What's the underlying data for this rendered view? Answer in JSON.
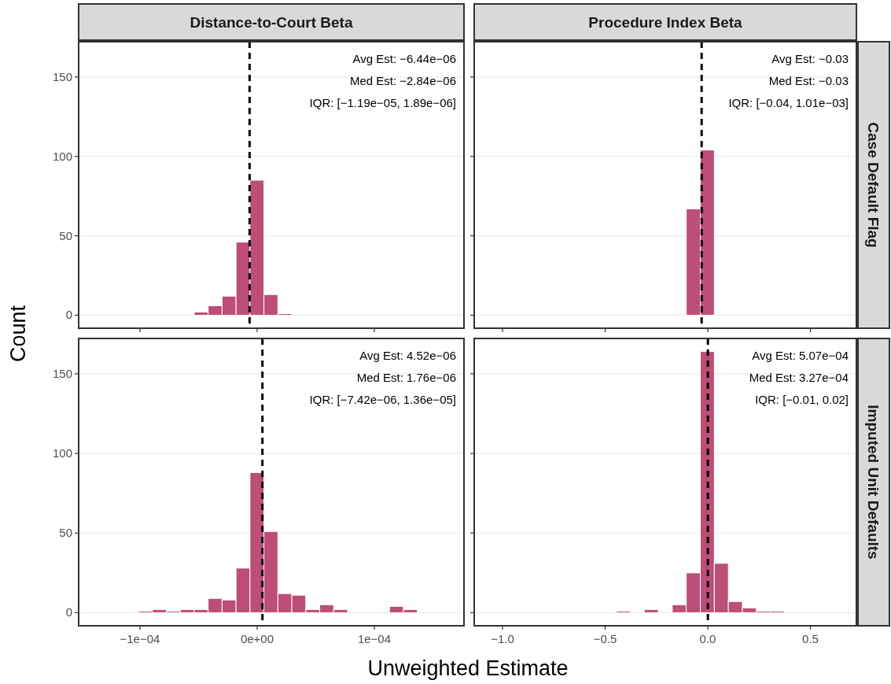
{
  "chart_data": [
    {
      "type": "histogram",
      "title": "Distance-to-Court Beta",
      "ylabel": "Count",
      "color": "#bc4e78",
      "grid": "y",
      "tick_labels": "y",
      "bins": [
        -0.000137,
        -0.0001251,
        -0.0001132,
        -0.0001013,
        -8.94e-05,
        -7.75e-05,
        -6.56e-05,
        -5.37e-05,
        -4.18e-05,
        -2.99e-05,
        -1.8e-05,
        -6.1e-06,
        5.8e-06,
        1.77e-05,
        2.96e-05,
        4.15e-05,
        5.34e-05,
        6.53e-05,
        7.72e-05,
        8.91e-05,
        0.000101,
        0.0001129,
        0.0001248,
        0.0001367,
        0.0001486,
        0.0001605
      ],
      "values": [
        0,
        0,
        0,
        0,
        0,
        0,
        0,
        2,
        6,
        12,
        46,
        85,
        13,
        1,
        0,
        0,
        0,
        0,
        0,
        0,
        0,
        0,
        0,
        0,
        0
      ],
      "xlim": [
        -0.0001523,
        0.0001765
      ],
      "xticks": [
        {
          "value": -0.0001,
          "label": null
        },
        {
          "value": 0,
          "label": null
        },
        {
          "value": 0.0001,
          "label": null
        }
      ],
      "ylim": [
        -8.2,
        172.2
      ],
      "yticks": [
        0,
        50,
        100,
        150
      ],
      "ref_lines": [
        {
          "axis": "x",
          "value": -6.44e-06,
          "color": "#000000",
          "line_style": "dashed"
        }
      ],
      "annotations": [
        "Avg Est: −6.44e−06",
        "Med Est: −2.84e−06",
        "IQR: [−1.19e−05, 1.89e−06]"
      ]
    },
    {
      "type": "histogram",
      "title": "Procedure Index Beta",
      "y2label": "Case Default Flag",
      "color": "#bc4e78",
      "grid": "y",
      "tick_labels": false,
      "bins": [
        -1.061,
        -0.9927,
        -0.9244,
        -0.8561,
        -0.7878,
        -0.7195,
        -0.6512,
        -0.5829,
        -0.5146,
        -0.4463,
        -0.378,
        -0.3097,
        -0.2414,
        -0.1731,
        -0.1048,
        -0.0365,
        0.0318,
        0.1001,
        0.1684,
        0.2367,
        0.305,
        0.3733,
        0.4416,
        0.5099,
        0.5782,
        0.6465
      ],
      "values": [
        0,
        0,
        0,
        0,
        0,
        0,
        0,
        0,
        0,
        0,
        0,
        0,
        0,
        0,
        67,
        104,
        0,
        0,
        0,
        0,
        0,
        0,
        0,
        0,
        0
      ],
      "xlim": [
        -1.138,
        0.724
      ],
      "xticks": [
        {
          "value": -1,
          "label": null
        },
        {
          "value": -0.5,
          "label": null
        },
        {
          "value": 0,
          "label": null
        },
        {
          "value": 0.5,
          "label": null
        }
      ],
      "ylim": [
        -8.2,
        172.2
      ],
      "yticks": [
        0,
        50,
        100,
        150
      ],
      "ref_lines": [
        {
          "axis": "x",
          "value": -0.03,
          "color": "#000000",
          "line_style": "dashed"
        }
      ],
      "annotations": [
        "Avg Est: −0.03",
        "Med Est: −0.03",
        "IQR: [−0.04, 1.01e−03]"
      ]
    },
    {
      "type": "histogram",
      "xlabel": "Unweighted Estimate",
      "color": "#bc4e78",
      "grid": "y",
      "bins": [
        -0.000137,
        -0.0001251,
        -0.0001132,
        -0.0001013,
        -8.94e-05,
        -7.75e-05,
        -6.56e-05,
        -5.37e-05,
        -4.18e-05,
        -2.99e-05,
        -1.8e-05,
        -6.1e-06,
        5.8e-06,
        1.77e-05,
        2.96e-05,
        4.15e-05,
        5.34e-05,
        6.53e-05,
        7.72e-05,
        8.91e-05,
        0.000101,
        0.0001129,
        0.0001248,
        0.0001367,
        0.0001486,
        0.0001605
      ],
      "values": [
        0,
        0,
        0,
        1,
        2,
        1,
        2,
        2,
        9,
        8,
        28,
        88,
        51,
        12,
        11,
        2,
        5,
        2,
        0,
        0,
        0,
        4,
        2,
        0,
        0
      ],
      "xlim": [
        -0.0001523,
        0.0001765
      ],
      "xticks": [
        {
          "value": -0.0001,
          "label": "−1e−04"
        },
        {
          "value": 0,
          "label": "0e+00"
        },
        {
          "value": 0.0001,
          "label": "1e−04"
        }
      ],
      "ylim": [
        -8.2,
        172.2
      ],
      "yticks": [
        0,
        50,
        100,
        150
      ],
      "ref_lines": [
        {
          "axis": "x",
          "value": 4.52e-06,
          "color": "#000000",
          "line_style": "dashed"
        }
      ],
      "annotations": [
        "Avg Est: 4.52e−06",
        "Med Est: 1.76e−06",
        "IQR: [−7.42e−06, 1.36e−05]"
      ]
    },
    {
      "type": "histogram",
      "y2label": "Imputed Unit Defaults",
      "color": "#bc4e78",
      "grid": "y",
      "tick_labels": "x",
      "bins": [
        -1.061,
        -0.9927,
        -0.9244,
        -0.8561,
        -0.7878,
        -0.7195,
        -0.6512,
        -0.5829,
        -0.5146,
        -0.4463,
        -0.378,
        -0.3097,
        -0.2414,
        -0.1731,
        -0.1048,
        -0.0365,
        0.0318,
        0.1001,
        0.1684,
        0.2367,
        0.305,
        0.3733,
        0.4416,
        0.5099,
        0.5782,
        0.6465
      ],
      "values": [
        0,
        0,
        0,
        0,
        0,
        0,
        0,
        0,
        0,
        1,
        0,
        2,
        0,
        5,
        25,
        164,
        31,
        7,
        3,
        1,
        1,
        0,
        0,
        0,
        0
      ],
      "xlim": [
        -1.138,
        0.724
      ],
      "xticks": [
        {
          "value": -1,
          "label": "−1.0"
        },
        {
          "value": -0.5,
          "label": "−0.5"
        },
        {
          "value": 0,
          "label": "0.0"
        },
        0.5
      ],
      "ylim": [
        -8.2,
        172.2
      ],
      "yticks": [
        0,
        50,
        100,
        150
      ],
      "ref_lines": [
        {
          "axis": "x",
          "value": 0.000507,
          "color": "#000000",
          "line_style": "dashed"
        }
      ],
      "annotations": [
        "Avg Est: 5.07e−04",
        "Med Est: 3.27e−04",
        "IQR: [−0.01, 0.02]"
      ]
    }
  ]
}
